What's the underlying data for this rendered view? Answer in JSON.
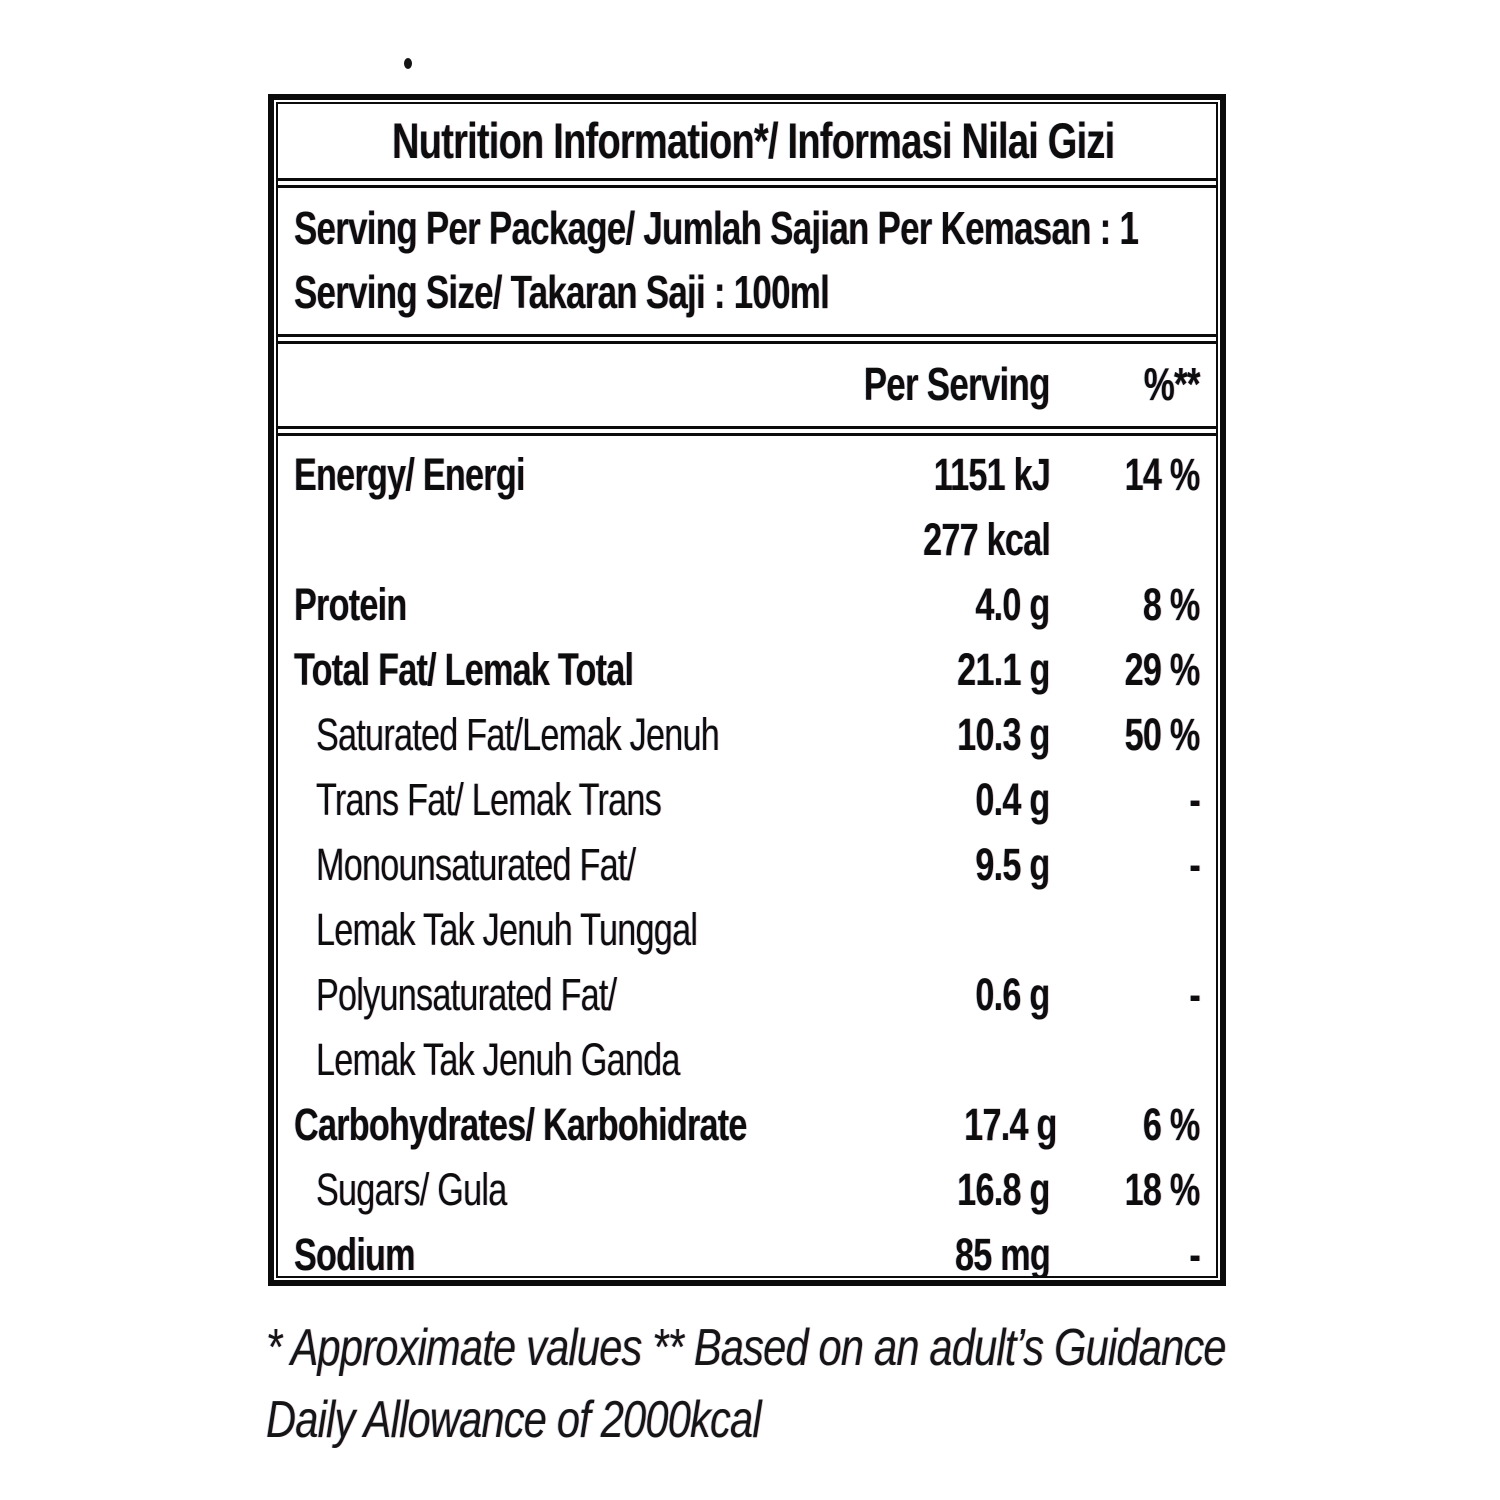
{
  "title": "Nutrition Information*/ Informasi Nilai Gizi",
  "serving": {
    "line1": "Serving Per Package/ Jumlah Sajian Per Kemasan : 1",
    "line2": "Serving Size/ Takaran Saji : 100ml"
  },
  "columns": {
    "per_serving": "Per Serving",
    "percent": "%**"
  },
  "rows": [
    {
      "label": "Energy/ Energi",
      "value": "1151 kJ",
      "pct": "14 %",
      "style": "main"
    },
    {
      "label": "",
      "value": "277 kcal",
      "pct": "",
      "style": "main"
    },
    {
      "label": "Protein",
      "value": "4.0 g",
      "pct": "8 %",
      "style": "main"
    },
    {
      "label": "Total Fat/ Lemak Total",
      "value": "21.1 g",
      "pct": "29 %",
      "style": "main"
    },
    {
      "label": "Saturated Fat/Lemak Jenuh",
      "value": "10.3 g",
      "pct": "50 %",
      "style": "sub"
    },
    {
      "label": "Trans Fat/ Lemak Trans",
      "value": "0.4 g",
      "pct": "-",
      "style": "sub"
    },
    {
      "label": "Monounsaturated Fat/",
      "value": "9.5 g",
      "pct": "-",
      "style": "sub"
    },
    {
      "label": "Lemak Tak Jenuh Tunggal",
      "value": "",
      "pct": "",
      "style": "sub"
    },
    {
      "label": "Polyunsaturated Fat/",
      "value": "0.6 g",
      "pct": "-",
      "style": "sub"
    },
    {
      "label": "Lemak Tak Jenuh Ganda",
      "value": "",
      "pct": "",
      "style": "sub"
    },
    {
      "label": "Carbohydrates/ Karbohidrate",
      "value": "17.4 g",
      "pct": "6 %",
      "style": "main"
    },
    {
      "label": "Sugars/ Gula",
      "value": "16.8 g",
      "pct": "18 %",
      "style": "sub"
    },
    {
      "label": "Sodium",
      "value": "85 mg",
      "pct": "-",
      "style": "main"
    }
  ],
  "footnote": {
    "line1": "* Approximate values  ** Based on an adult’s Guidance",
    "line2": "Daily Allowance of 2000kcal"
  },
  "colors": {
    "text": "#0d0d0d",
    "border": "#0b0b0b",
    "background": "#ffffff"
  }
}
